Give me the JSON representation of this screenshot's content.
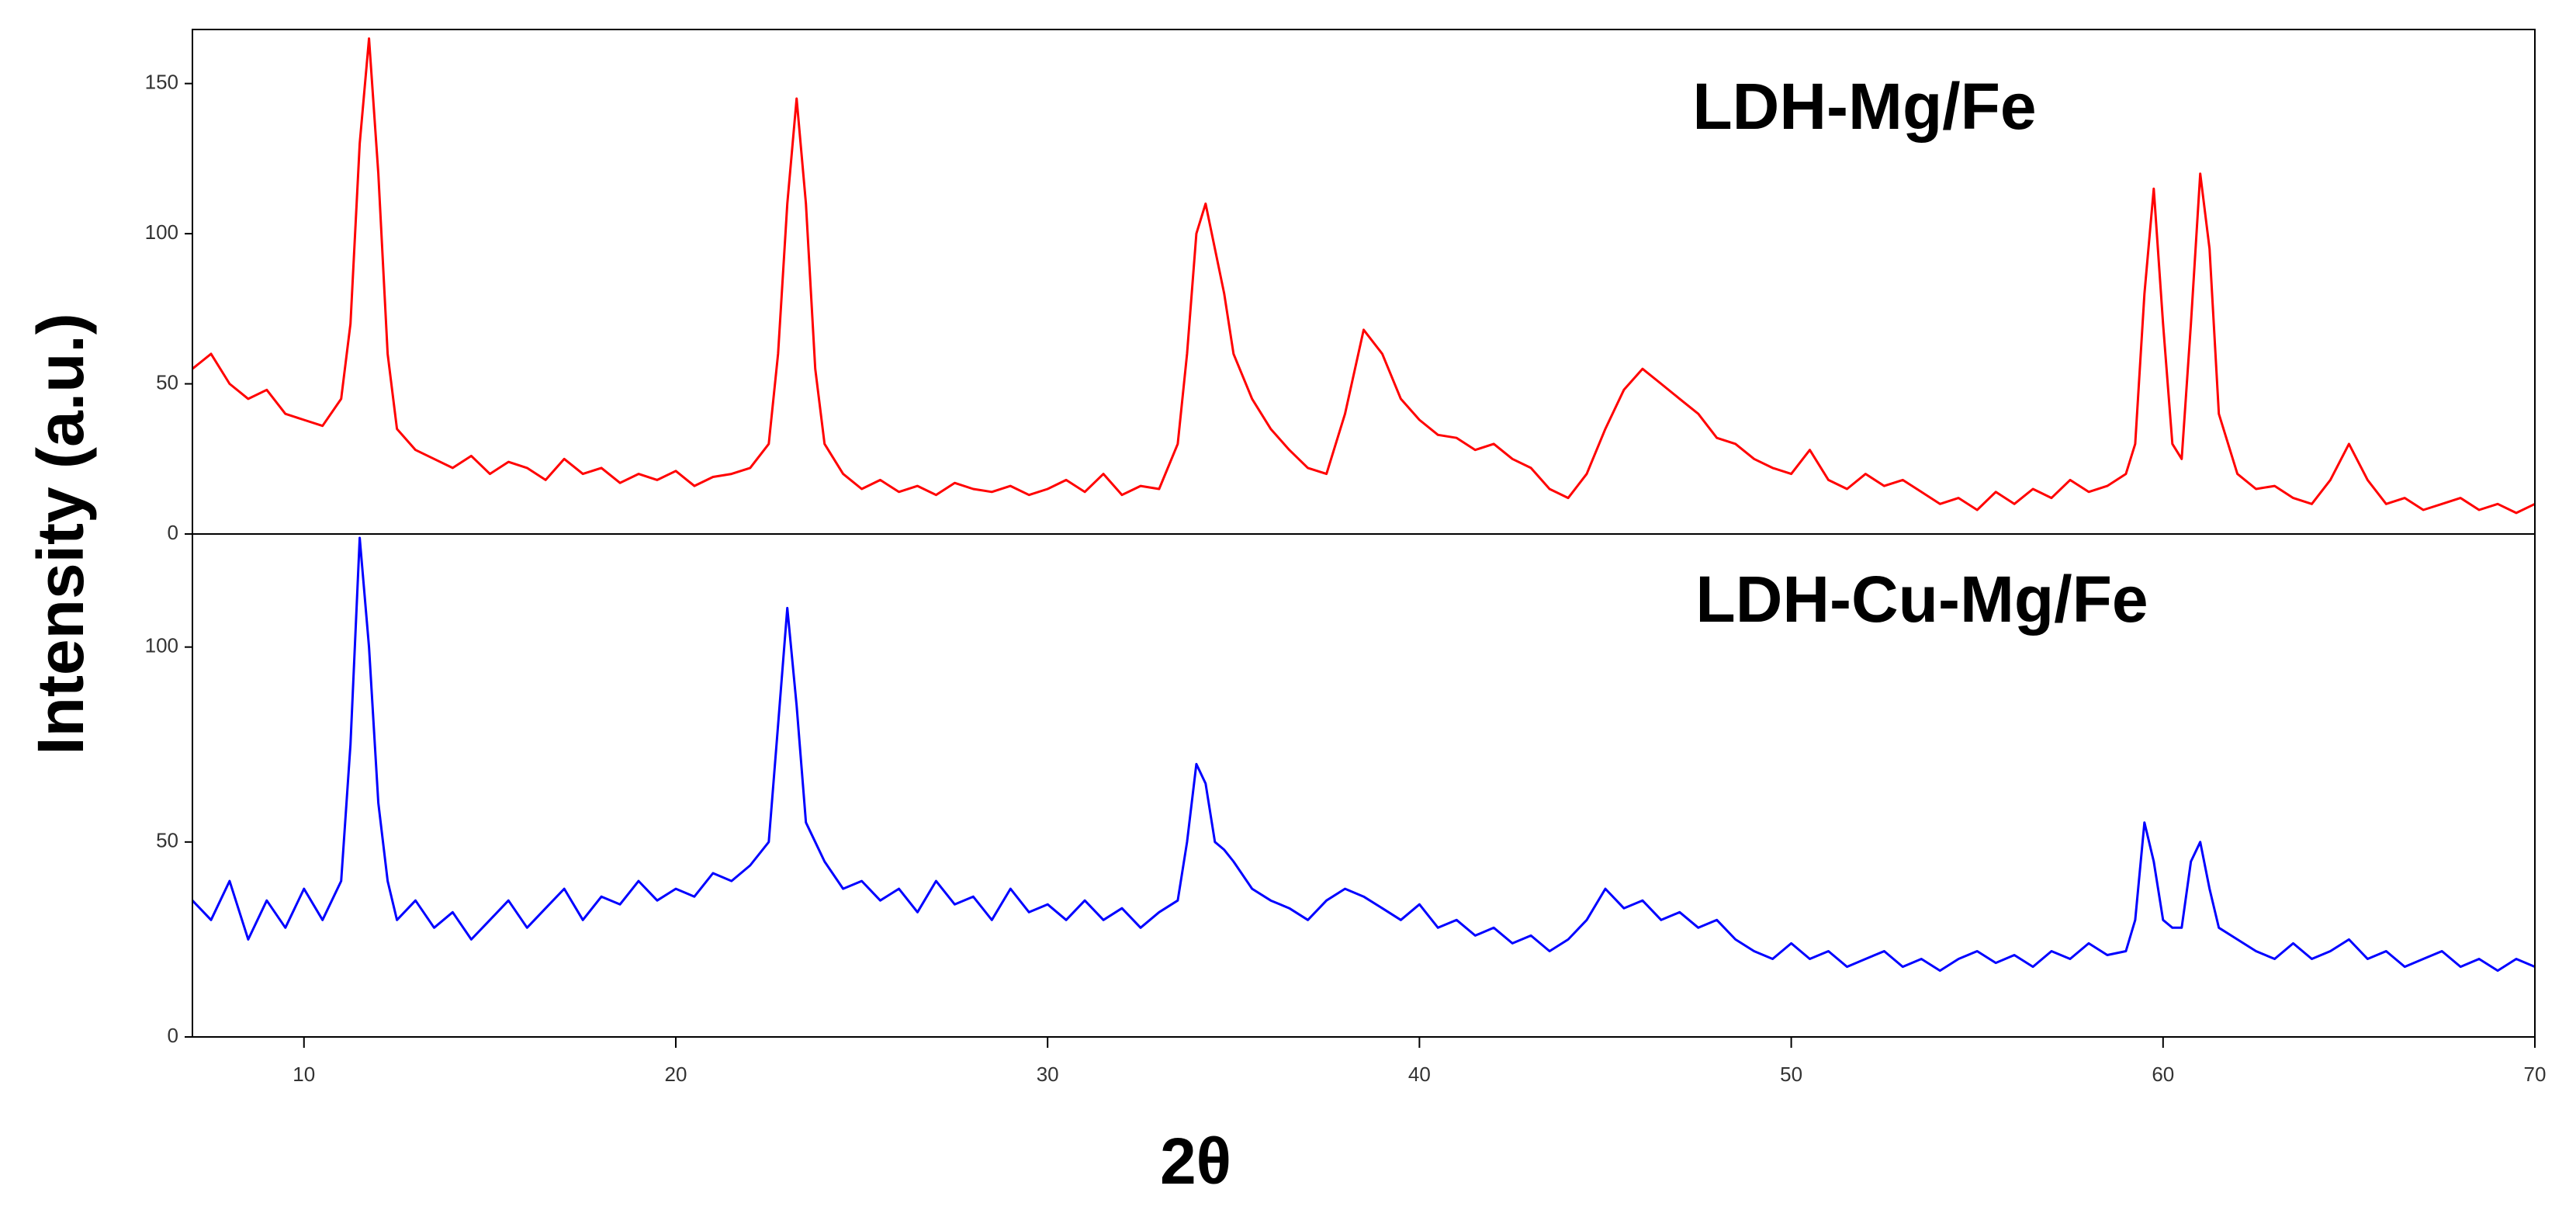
{
  "chart_data": [
    {
      "type": "line",
      "ylabel": "Intensity (a.u.)",
      "label": "LDH-Mg/Fe",
      "color": "#ff0000",
      "xlim": [
        7,
        70
      ],
      "ylim": [
        0,
        168
      ],
      "yticks": [
        0,
        50,
        100,
        150
      ],
      "x": [
        7,
        7.5,
        8,
        8.5,
        9,
        9.5,
        10,
        10.5,
        11,
        11.25,
        11.5,
        11.75,
        12,
        12.25,
        12.5,
        13,
        13.5,
        14,
        14.5,
        15,
        15.5,
        16,
        16.5,
        17,
        17.5,
        18,
        18.5,
        19,
        19.5,
        20,
        20.5,
        21,
        21.5,
        22,
        22.5,
        22.75,
        23,
        23.25,
        23.5,
        23.75,
        24,
        24.5,
        25,
        25.5,
        26,
        26.5,
        27,
        27.5,
        28,
        28.5,
        29,
        29.5,
        30,
        30.5,
        31,
        31.5,
        32,
        32.5,
        33,
        33.5,
        33.75,
        34,
        34.25,
        34.5,
        34.75,
        35,
        35.5,
        36,
        36.5,
        37,
        37.5,
        38,
        38.5,
        39,
        39.5,
        40,
        40.5,
        41,
        41.5,
        42,
        42.5,
        43,
        43.5,
        44,
        44.5,
        45,
        45.5,
        46,
        46.5,
        47,
        47.5,
        48,
        48.5,
        49,
        49.5,
        50,
        50.5,
        51,
        51.5,
        52,
        52.5,
        53,
        53.5,
        54,
        54.5,
        55,
        55.5,
        56,
        56.5,
        57,
        57.5,
        58,
        58.5,
        59,
        59.25,
        59.5,
        59.75,
        60,
        60.25,
        60.5,
        60.75,
        61,
        61.25,
        61.5,
        62,
        62.5,
        63,
        63.5,
        64,
        64.5,
        65,
        65.5,
        66,
        66.5,
        67,
        67.5,
        68,
        68.5,
        69,
        69.5,
        70
      ],
      "values": [
        55,
        60,
        50,
        45,
        48,
        40,
        38,
        36,
        45,
        70,
        130,
        165,
        120,
        60,
        35,
        28,
        25,
        22,
        26,
        20,
        24,
        22,
        18,
        25,
        20,
        22,
        17,
        20,
        18,
        21,
        16,
        19,
        20,
        22,
        30,
        60,
        110,
        145,
        110,
        55,
        30,
        20,
        15,
        18,
        14,
        16,
        13,
        17,
        15,
        14,
        16,
        13,
        15,
        18,
        14,
        20,
        13,
        16,
        15,
        30,
        60,
        100,
        110,
        95,
        80,
        60,
        45,
        35,
        28,
        22,
        20,
        40,
        68,
        60,
        45,
        38,
        33,
        32,
        28,
        30,
        25,
        22,
        15,
        12,
        20,
        35,
        48,
        55,
        50,
        45,
        40,
        32,
        30,
        25,
        22,
        20,
        28,
        18,
        15,
        20,
        16,
        18,
        14,
        10,
        12,
        8,
        14,
        10,
        15,
        12,
        18,
        14,
        16,
        20,
        30,
        80,
        115,
        70,
        30,
        25,
        70,
        120,
        95,
        40,
        20,
        15,
        16,
        12,
        10,
        18,
        30,
        18,
        10,
        12,
        8,
        10,
        12,
        8,
        10,
        7,
        10
      ]
    },
    {
      "type": "line",
      "label": "LDH-Cu-Mg/Fe",
      "xlabel": "2θ",
      "color": "#0000ff",
      "xlim": [
        7,
        70
      ],
      "xticks": [
        10,
        20,
        30,
        40,
        50,
        60,
        70
      ],
      "ylim": [
        0,
        129
      ],
      "yticks": [
        0,
        50,
        100
      ],
      "x": [
        7,
        7.5,
        8,
        8.5,
        9,
        9.5,
        10,
        10.5,
        11,
        11.25,
        11.5,
        11.75,
        12,
        12.25,
        12.5,
        13,
        13.5,
        14,
        14.5,
        15,
        15.5,
        16,
        16.5,
        17,
        17.5,
        18,
        18.5,
        19,
        19.5,
        20,
        20.5,
        21,
        21.5,
        22,
        22.5,
        22.75,
        23,
        23.25,
        23.5,
        23.75,
        24,
        24.5,
        25,
        25.5,
        26,
        26.5,
        27,
        27.5,
        28,
        28.5,
        29,
        29.5,
        30,
        30.5,
        31,
        31.5,
        32,
        32.5,
        33,
        33.5,
        33.75,
        34,
        34.25,
        34.5,
        34.75,
        35,
        35.5,
        36,
        36.5,
        37,
        37.5,
        38,
        38.5,
        39,
        39.5,
        40,
        40.5,
        41,
        41.5,
        42,
        42.5,
        43,
        43.5,
        44,
        44.5,
        45,
        45.5,
        46,
        46.5,
        47,
        47.5,
        48,
        48.5,
        49,
        49.5,
        50,
        50.5,
        51,
        51.5,
        52,
        52.5,
        53,
        53.5,
        54,
        54.5,
        55,
        55.5,
        56,
        56.5,
        57,
        57.5,
        58,
        58.5,
        59,
        59.25,
        59.5,
        59.75,
        60,
        60.25,
        60.5,
        60.75,
        61,
        61.25,
        61.5,
        62,
        62.5,
        63,
        63.5,
        64,
        64.5,
        65,
        65.5,
        66,
        66.5,
        67,
        67.5,
        68,
        68.5,
        69,
        69.5,
        70
      ],
      "values": [
        35,
        30,
        40,
        25,
        35,
        28,
        38,
        30,
        40,
        75,
        128,
        100,
        60,
        40,
        30,
        35,
        28,
        32,
        25,
        30,
        35,
        28,
        33,
        38,
        30,
        36,
        34,
        40,
        35,
        38,
        36,
        42,
        40,
        44,
        50,
        80,
        110,
        85,
        55,
        50,
        45,
        38,
        40,
        35,
        38,
        32,
        40,
        34,
        36,
        30,
        38,
        32,
        34,
        30,
        35,
        30,
        33,
        28,
        32,
        35,
        50,
        70,
        65,
        50,
        48,
        45,
        38,
        35,
        33,
        30,
        35,
        38,
        36,
        33,
        30,
        34,
        28,
        30,
        26,
        28,
        24,
        26,
        22,
        25,
        30,
        38,
        33,
        35,
        30,
        32,
        28,
        30,
        25,
        22,
        20,
        24,
        20,
        22,
        18,
        20,
        22,
        18,
        20,
        17,
        20,
        22,
        19,
        21,
        18,
        22,
        20,
        24,
        21,
        22,
        30,
        55,
        45,
        30,
        28,
        28,
        45,
        50,
        38,
        28,
        25,
        22,
        20,
        24,
        20,
        22,
        25,
        20,
        22,
        18,
        20,
        22,
        18,
        20,
        17,
        20,
        18
      ]
    }
  ]
}
